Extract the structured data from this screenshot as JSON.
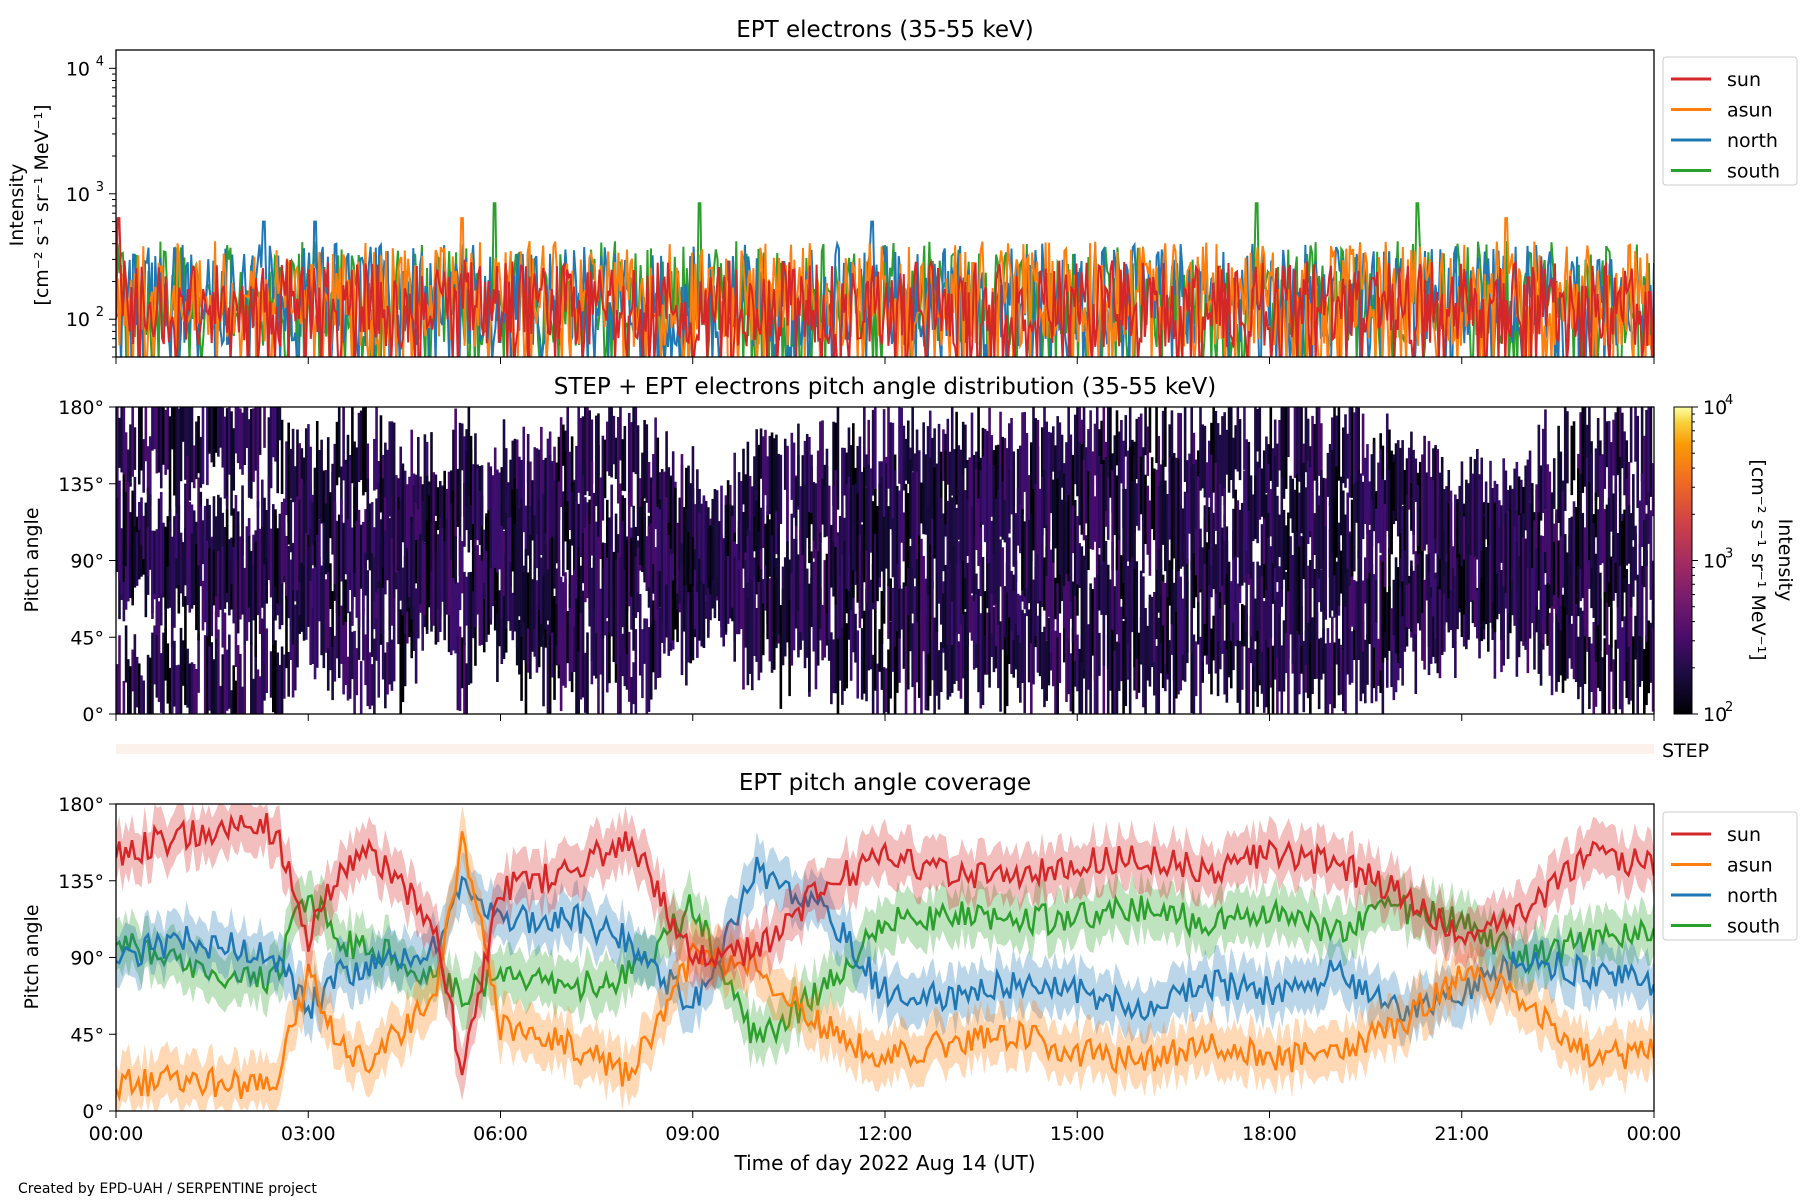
{
  "figure": {
    "credit": "Created by EPD-UAH / SERPENTINE project",
    "step_label": "STEP",
    "xlabel": "Time of day 2022 Aug 14 (UT)"
  },
  "chart_data": [
    {
      "id": "intensity",
      "type": "line",
      "title": "EPT electrons (35-55 keV)",
      "ylabel_line1": "Intensity",
      "ylabel_line2": "[cm⁻² s⁻¹ sr⁻¹ MeV⁻¹]",
      "y_scale": "log",
      "ylim": [
        50,
        14000
      ],
      "y_ticks": [
        {
          "value": 100,
          "base": "10",
          "exp": "2"
        },
        {
          "value": 1000,
          "base": "10",
          "exp": "3"
        },
        {
          "value": 10000,
          "base": "10",
          "exp": "4"
        }
      ],
      "x_ticks_hours": [
        0,
        3,
        6,
        9,
        12,
        15,
        18,
        21,
        24
      ],
      "legend_position": "upper-right-outside",
      "series": [
        {
          "name": "south",
          "color": "#2ca02c",
          "typical_range": [
            60,
            420
          ],
          "spike_max": 840,
          "spike_hours": [
            5.9,
            9.1,
            17.8,
            20.3
          ]
        },
        {
          "name": "north",
          "color": "#1f77b4",
          "typical_range": [
            60,
            400
          ],
          "spike_max": 600,
          "spike_hours": [
            2.3,
            3.1,
            11.8
          ]
        },
        {
          "name": "asun",
          "color": "#ff7f0e",
          "typical_range": [
            60,
            420
          ],
          "spike_max": 640,
          "spike_hours": [
            5.4,
            21.7
          ]
        },
        {
          "name": "sun",
          "color": "#d62728",
          "typical_range": [
            60,
            300
          ],
          "spike_max": 640,
          "spike_hours": [
            0.05
          ]
        }
      ],
      "legend_order": [
        "sun",
        "asun",
        "north",
        "south"
      ]
    },
    {
      "id": "pad",
      "type": "heatmap",
      "title": "STEP + EPT electrons pitch angle distribution (35-55 keV)",
      "ylabel": "Pitch angle",
      "ylim": [
        0,
        180
      ],
      "y_ticks": [
        "0°",
        "45°",
        "90°",
        "135°",
        "180°"
      ],
      "x_ticks_hours": [
        0,
        3,
        6,
        9,
        12,
        15,
        18,
        21,
        24
      ],
      "colorbar": {
        "label_line1": "Intensity",
        "label_line2": "[cm⁻² s⁻¹ sr⁻¹ MeV⁻¹]",
        "scale": "log",
        "range": [
          100,
          10000
        ],
        "ticks": [
          {
            "value": 100,
            "base": "10",
            "exp": "2"
          },
          {
            "value": 1000,
            "base": "10",
            "exp": "3"
          },
          {
            "value": 10000,
            "base": "10",
            "exp": "4"
          }
        ],
        "colormap": "inferno"
      },
      "typical_intensity": 150
    },
    {
      "id": "coverage",
      "type": "line",
      "title": "EPT pitch angle coverage",
      "ylabel": "Pitch angle",
      "ylim": [
        0,
        180
      ],
      "y_ticks": [
        "0°",
        "45°",
        "90°",
        "135°",
        "180°"
      ],
      "x_ticks": [
        "00:00",
        "03:00",
        "06:00",
        "09:00",
        "12:00",
        "15:00",
        "18:00",
        "21:00",
        "00:00"
      ],
      "x_ticks_hours": [
        0,
        3,
        6,
        9,
        12,
        15,
        18,
        21,
        24
      ],
      "legend_position": "upper-right-outside",
      "band_halfwidth_deg": 15,
      "series": [
        {
          "name": "sun",
          "color": "#d62728",
          "t": [
            0,
            1,
            2,
            2.5,
            3,
            3.5,
            4,
            5,
            5.4,
            6,
            7,
            8,
            9,
            10,
            11,
            12,
            13,
            14,
            15,
            16,
            17,
            18,
            19,
            20,
            21,
            22,
            23,
            24
          ],
          "y": [
            150,
            162,
            168,
            165,
            100,
            145,
            150,
            110,
            20,
            130,
            140,
            160,
            90,
            95,
            130,
            150,
            140,
            135,
            145,
            150,
            140,
            150,
            145,
            130,
            100,
            115,
            150,
            145
          ]
        },
        {
          "name": "asun",
          "color": "#ff7f0e",
          "t": [
            0,
            1,
            2,
            2.5,
            3,
            3.5,
            4,
            5,
            5.4,
            6,
            7,
            8,
            9,
            10,
            11,
            12,
            13,
            14,
            15,
            16,
            17,
            18,
            19,
            20,
            21,
            22,
            23,
            24
          ],
          "y": [
            15,
            20,
            15,
            18,
            80,
            35,
            30,
            70,
            160,
            50,
            40,
            20,
            90,
            85,
            50,
            30,
            40,
            45,
            35,
            30,
            40,
            30,
            35,
            50,
            80,
            65,
            30,
            35
          ]
        },
        {
          "name": "north",
          "color": "#1f77b4",
          "t": [
            0,
            1,
            2,
            2.5,
            3,
            3.5,
            4,
            5,
            5.4,
            6,
            7,
            8,
            9,
            10,
            11,
            12,
            13,
            14,
            15,
            16,
            17,
            18,
            19,
            20,
            21,
            22,
            23,
            24
          ],
          "y": [
            90,
            100,
            95,
            90,
            60,
            80,
            85,
            95,
            130,
            110,
            115,
            100,
            60,
            140,
            120,
            70,
            65,
            75,
            70,
            60,
            75,
            70,
            80,
            60,
            70,
            90,
            80,
            75
          ]
        },
        {
          "name": "south",
          "color": "#2ca02c",
          "t": [
            0,
            1,
            2,
            2.5,
            3,
            3.5,
            4,
            5,
            5.4,
            6,
            7,
            8,
            9,
            10,
            11,
            12,
            13,
            14,
            15,
            16,
            17,
            18,
            19,
            20,
            21,
            22,
            23,
            24
          ],
          "y": [
            100,
            85,
            75,
            80,
            130,
            100,
            95,
            80,
            70,
            80,
            70,
            80,
            120,
            40,
            70,
            110,
            115,
            110,
            115,
            120,
            110,
            115,
            105,
            120,
            110,
            90,
            100,
            105
          ]
        }
      ],
      "legend_order": [
        "sun",
        "asun",
        "north",
        "south"
      ]
    }
  ]
}
